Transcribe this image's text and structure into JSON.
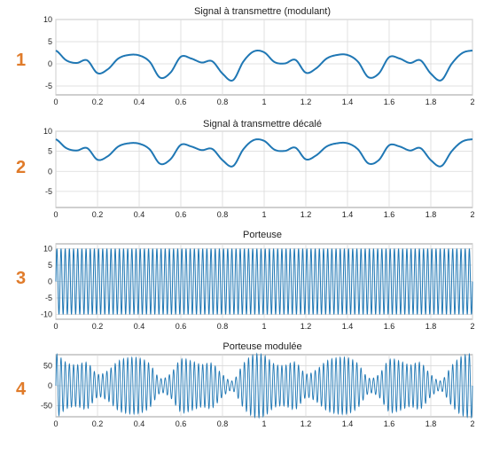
{
  "number_color": "#e07b2a",
  "line_color": "#1f77b4",
  "chart_data": [
    {
      "type": "line",
      "index_label": "1",
      "title": "Signal à transmettre (modulant)",
      "xlabel": "",
      "ylabel": "",
      "xlim": [
        0,
        2
      ],
      "ylim": [
        -7,
        10
      ],
      "xticks": [
        "0",
        "0.2",
        "0.4",
        "0.6",
        "0.8",
        "1",
        "1.2",
        "1.4",
        "1.6",
        "1.8",
        "2"
      ],
      "yticks": [
        "-5",
        "0",
        "5",
        "10"
      ],
      "ytick_values": [
        -5,
        0,
        5,
        10
      ],
      "grid": true,
      "series": [
        {
          "x": [
            0,
            0.05,
            0.1,
            0.15,
            0.2,
            0.25,
            0.3,
            0.35,
            0.4,
            0.45,
            0.5,
            0.55,
            0.6,
            0.65,
            0.7,
            0.75,
            0.8,
            0.85,
            0.9,
            0.95,
            1,
            1.05,
            1.1,
            1.15,
            1.2,
            1.25,
            1.3,
            1.35,
            1.4,
            1.45,
            1.5,
            1.55,
            1.6,
            1.65,
            1.7,
            1.75,
            1.8,
            1.85,
            1.9,
            1.95,
            2
          ],
          "values": [
            3,
            0.8,
            0.2,
            0.8,
            -2.1,
            -1.2,
            1.2,
            2,
            1.9,
            0.5,
            -3.1,
            -2,
            1.6,
            1.2,
            0.3,
            0.6,
            -2.2,
            -3.7,
            0.5,
            2.8,
            2.6,
            0.4,
            0.1,
            0.9,
            -2,
            -1,
            1.2,
            2,
            2,
            0.5,
            -3,
            -2.2,
            1.5,
            1.2,
            0.2,
            0.8,
            -2.2,
            -3.7,
            0,
            2.4,
            3
          ]
        }
      ]
    },
    {
      "type": "line",
      "index_label": "2",
      "title": "Signal à transmettre décalé",
      "xlabel": "",
      "ylabel": "",
      "xlim": [
        0,
        2
      ],
      "ylim": [
        -9,
        10
      ],
      "xticks": [
        "0",
        "0.2",
        "0.4",
        "0.6",
        "0.8",
        "1",
        "1.2",
        "1.4",
        "1.6",
        "1.8",
        "2"
      ],
      "yticks": [
        "-5",
        "0",
        "5",
        "10"
      ],
      "ytick_values": [
        -5,
        0,
        5,
        10
      ],
      "grid": true,
      "series": [
        {
          "x": [
            0,
            0.05,
            0.1,
            0.15,
            0.2,
            0.25,
            0.3,
            0.35,
            0.4,
            0.45,
            0.5,
            0.55,
            0.6,
            0.65,
            0.7,
            0.75,
            0.8,
            0.85,
            0.9,
            0.95,
            1,
            1.05,
            1.1,
            1.15,
            1.2,
            1.25,
            1.3,
            1.35,
            1.4,
            1.45,
            1.5,
            1.55,
            1.6,
            1.65,
            1.7,
            1.75,
            1.8,
            1.85,
            1.9,
            1.95,
            2
          ],
          "values": [
            8,
            5.8,
            5.2,
            5.8,
            2.9,
            3.8,
            6.2,
            7,
            6.9,
            5.5,
            1.9,
            3,
            6.6,
            6.2,
            5.3,
            5.6,
            2.8,
            1.3,
            5.5,
            7.8,
            7.6,
            5.4,
            5.1,
            5.9,
            3,
            4,
            6.2,
            7,
            7,
            5.5,
            2,
            2.8,
            6.5,
            6.2,
            5.2,
            5.8,
            2.8,
            1.3,
            5,
            7.4,
            8
          ]
        }
      ]
    },
    {
      "type": "line",
      "index_label": "3",
      "title": "Porteuse",
      "xlabel": "",
      "ylabel": "",
      "xlim": [
        0,
        2
      ],
      "ylim": [
        -11.5,
        11.5
      ],
      "xticks": [
        "0",
        "0.2",
        "0.4",
        "0.6",
        "0.8",
        "1",
        "1.2",
        "1.4",
        "1.6",
        "1.8",
        "2"
      ],
      "yticks": [
        "-10",
        "-5",
        "0",
        "5",
        "10"
      ],
      "ytick_values": [
        -10,
        -5,
        0,
        5,
        10
      ],
      "grid": true,
      "amplitude": 10,
      "frequency": 50
    },
    {
      "type": "line",
      "index_label": "4",
      "title": "Porteuse modulée",
      "xlabel": "",
      "ylabel": "",
      "xlim": [
        0,
        2
      ],
      "ylim": [
        -78,
        78
      ],
      "xticks": [
        "0",
        "0.2",
        "0.4",
        "0.6",
        "0.8",
        "1",
        "1.2",
        "1.4",
        "1.6",
        "1.8",
        "2"
      ],
      "yticks": [
        "-50",
        "0",
        "50"
      ],
      "ytick_values": [
        -50,
        0,
        50
      ],
      "grid": true,
      "frequency": 50,
      "carrier_amplitude": 10,
      "envelope_from": "Signal à transmettre décalé"
    }
  ]
}
